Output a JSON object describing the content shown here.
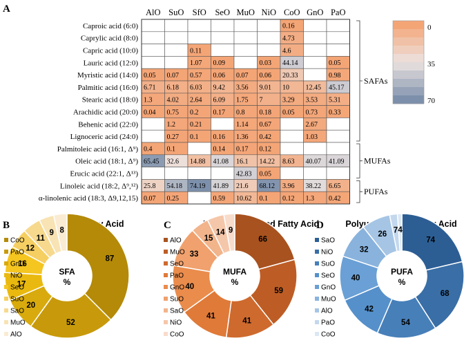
{
  "chart_data": [
    {
      "type": "table",
      "panel": "A",
      "columns": [
        "AlO",
        "SuO",
        "SfO",
        "SeO",
        "MuO",
        "NiO",
        "CoO",
        "GnO",
        "PaO"
      ],
      "rows": [
        {
          "label": "Caproic acid (6:0)",
          "values": [
            null,
            null,
            null,
            null,
            null,
            null,
            0.16,
            null,
            null
          ]
        },
        {
          "label": "Caprylic acid (8:0)",
          "values": [
            null,
            null,
            null,
            null,
            null,
            null,
            4.73,
            null,
            null
          ]
        },
        {
          "label": "Capric acid (10:0)",
          "values": [
            null,
            null,
            0.11,
            null,
            null,
            null,
            4.6,
            null,
            null
          ]
        },
        {
          "label": "Lauric acid (12:0)",
          "values": [
            null,
            null,
            1.07,
            0.09,
            null,
            0.03,
            44.14,
            null,
            0.05
          ]
        },
        {
          "label": "Myristic acid (14:0)",
          "values": [
            0.05,
            0.07,
            0.57,
            0.06,
            0.07,
            0.06,
            20.33,
            null,
            0.98
          ]
        },
        {
          "label": "Palmitic acid (16:0)",
          "values": [
            6.71,
            6.18,
            6.03,
            9.42,
            3.56,
            9.01,
            10,
            12.45,
            45.17
          ]
        },
        {
          "label": "Stearic acid (18:0)",
          "values": [
            1.3,
            4.02,
            2.64,
            6.09,
            1.75,
            7,
            3.29,
            3.53,
            5.31
          ]
        },
        {
          "label": "Arachidic acid (20:0)",
          "values": [
            0.04,
            0.75,
            0.2,
            0.17,
            0.8,
            0.18,
            0.05,
            0.73,
            0.33
          ]
        },
        {
          "label": "Behenic acid (22:0)",
          "values": [
            null,
            1.2,
            0.21,
            null,
            1.14,
            0.67,
            null,
            2.67,
            null
          ]
        },
        {
          "label": "Lignoceric acid (24:0)",
          "values": [
            null,
            0.27,
            0.1,
            0.16,
            1.36,
            0.42,
            null,
            1.03,
            null
          ]
        },
        {
          "label": "Palmitoleic acid (16:1, Δ⁹)",
          "values": [
            0.4,
            0.1,
            null,
            0.14,
            0.17,
            0.12,
            null,
            null,
            null
          ]
        },
        {
          "label": "Oleic acid (18:1, Δ⁹)",
          "values": [
            65.45,
            32.6,
            14.88,
            41.08,
            16.1,
            14.22,
            8.63,
            40.07,
            41.09
          ]
        },
        {
          "label": "Erucic acid (22:1, Δ¹³)",
          "values": [
            null,
            null,
            null,
            null,
            42.83,
            0.05,
            null,
            null,
            null
          ]
        },
        {
          "label": "Linoleic acid (18:2, Δ⁹,¹²)",
          "values": [
            25.8,
            54.18,
            74.19,
            41.89,
            21.6,
            68.12,
            3.96,
            38.22,
            6.65
          ]
        },
        {
          "label": "α-linolenic acid (18:3, Δ9,12,15)",
          "values": [
            0.07,
            0.25,
            null,
            0.59,
            10.62,
            0.1,
            0.12,
            1.3,
            0.42
          ]
        }
      ],
      "groups": [
        {
          "label": "SAFAs",
          "rows": [
            0,
            9
          ]
        },
        {
          "label": "MUFAs",
          "rows": [
            10,
            12
          ]
        },
        {
          "label": "PUFAs",
          "rows": [
            13,
            14
          ]
        }
      ],
      "colorbar": {
        "ticks": [
          "0",
          "35",
          "70"
        ],
        "min": 0,
        "max": 70
      },
      "colors": {
        "low": "#f4a576",
        "mid": "#ece3e1",
        "high": "#7d90ab"
      }
    },
    {
      "type": "pie",
      "panel": "B",
      "title": "Saturated Fatty Acid",
      "center_label": [
        "SFA",
        "%"
      ],
      "categories": [
        "CoO",
        "PaO",
        "GnO",
        "NiO",
        "SeO",
        "SuO",
        "SaO",
        "MuO",
        "AlO"
      ],
      "values": [
        87,
        52,
        20,
        17,
        16,
        12,
        11,
        9,
        8
      ],
      "colors": [
        "#b48a08",
        "#c89a0b",
        "#d8aa0d",
        "#eab90f",
        "#f5c520",
        "#f6cf62",
        "#f7d98e",
        "#f8e3b4",
        "#faecd2"
      ]
    },
    {
      "type": "pie",
      "panel": "C",
      "title": "Monounsaturated Fatty Acid",
      "center_label": [
        "MUFA",
        "%"
      ],
      "categories": [
        "AlO",
        "MuO",
        "SeO",
        "PaO",
        "GnO",
        "SuO",
        "SaO",
        "NiO",
        "CoO"
      ],
      "values": [
        66,
        59,
        41,
        41,
        40,
        33,
        15,
        14,
        9
      ],
      "colors": [
        "#a8521f",
        "#bd5d25",
        "#ce6a2e",
        "#e07a38",
        "#ea8c4c",
        "#f0a16d",
        "#f2b48b",
        "#f5c7aa",
        "#f8dccb"
      ]
    },
    {
      "type": "pie",
      "panel": "D",
      "title": "Polyunsaturated Fatty Acid",
      "center_label": [
        "PUFA",
        "%"
      ],
      "categories": [
        "SaO",
        "NiO",
        "SuO",
        "SeO",
        "GnO",
        "MuO",
        "AlO",
        "PaO",
        "CoO"
      ],
      "values": [
        74,
        68,
        54,
        42,
        40,
        32,
        26,
        7,
        4
      ],
      "colors": [
        "#2c5e94",
        "#3a6ea6",
        "#477fb9",
        "#5590cb",
        "#6aa0d5",
        "#89b3dd",
        "#a6c5e5",
        "#c3d8ed",
        "#dbe7f4"
      ]
    }
  ]
}
